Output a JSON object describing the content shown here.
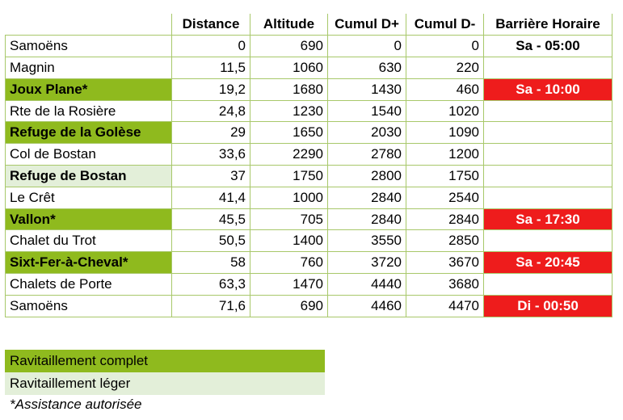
{
  "table": {
    "headers": [
      "",
      "Distance",
      "Altitude",
      "Cumul D+",
      "Cumul D-",
      "Barrière Horaire"
    ],
    "rows": [
      {
        "name": "Samoëns",
        "distance": "0",
        "altitude": "690",
        "cumul_plus": "0",
        "cumul_minus": "0",
        "barriere": "Sa - 05:00",
        "ravitaillement": "none",
        "barriere_alert": false
      },
      {
        "name": "Magnin",
        "distance": "11,5",
        "altitude": "1060",
        "cumul_plus": "630",
        "cumul_minus": "220",
        "barriere": "",
        "ravitaillement": "none",
        "barriere_alert": false
      },
      {
        "name": "Joux Plane*",
        "distance": "19,2",
        "altitude": "1680",
        "cumul_plus": "1430",
        "cumul_minus": "460",
        "barriere": "Sa - 10:00",
        "ravitaillement": "complet",
        "barriere_alert": true
      },
      {
        "name": "Rte de la Rosière",
        "distance": "24,8",
        "altitude": "1230",
        "cumul_plus": "1540",
        "cumul_minus": "1020",
        "barriere": "",
        "ravitaillement": "none",
        "barriere_alert": false
      },
      {
        "name": "Refuge de la Golèse",
        "distance": "29",
        "altitude": "1650",
        "cumul_plus": "2030",
        "cumul_minus": "1090",
        "barriere": "",
        "ravitaillement": "complet",
        "barriere_alert": false
      },
      {
        "name": "Col de Bostan",
        "distance": "33,6",
        "altitude": "2290",
        "cumul_plus": "2780",
        "cumul_minus": "1200",
        "barriere": "",
        "ravitaillement": "none",
        "barriere_alert": false
      },
      {
        "name": "Refuge de Bostan",
        "distance": "37",
        "altitude": "1750",
        "cumul_plus": "2800",
        "cumul_minus": "1750",
        "barriere": "",
        "ravitaillement": "leger",
        "barriere_alert": false
      },
      {
        "name": "Le Crêt",
        "distance": "41,4",
        "altitude": "1000",
        "cumul_plus": "2840",
        "cumul_minus": "2540",
        "barriere": "",
        "ravitaillement": "none",
        "barriere_alert": false
      },
      {
        "name": "Vallon*",
        "distance": "45,5",
        "altitude": "705",
        "cumul_plus": "2840",
        "cumul_minus": "2840",
        "barriere": "Sa - 17:30",
        "ravitaillement": "complet",
        "barriere_alert": true
      },
      {
        "name": "Chalet du Trot",
        "distance": "50,5",
        "altitude": "1400",
        "cumul_plus": "3550",
        "cumul_minus": "2850",
        "barriere": "",
        "ravitaillement": "none",
        "barriere_alert": false
      },
      {
        "name": "Sixt-Fer-à-Cheval*",
        "distance": "58",
        "altitude": "760",
        "cumul_plus": "3720",
        "cumul_minus": "3670",
        "barriere": "Sa - 20:45",
        "ravitaillement": "complet",
        "barriere_alert": true
      },
      {
        "name": "Chalets de Porte",
        "distance": "63,3",
        "altitude": "1470",
        "cumul_plus": "4440",
        "cumul_minus": "3680",
        "barriere": "",
        "ravitaillement": "none",
        "barriere_alert": false
      },
      {
        "name": "Samoëns",
        "distance": "71,6",
        "altitude": "690",
        "cumul_plus": "4460",
        "cumul_minus": "4470",
        "barriere": "Di - 00:50",
        "ravitaillement": "none",
        "barriere_alert": true
      }
    ]
  },
  "legend": {
    "complet": "Ravitaillement complet",
    "leger": "Ravitaillement léger",
    "assistance": "*Assistance autorisée"
  },
  "colors": {
    "ravitaillement_complet": "#8fba1e",
    "ravitaillement_leger": "#e3efd9",
    "barriere_alert": "#ee1c1c",
    "grid": "#a8c86a"
  }
}
